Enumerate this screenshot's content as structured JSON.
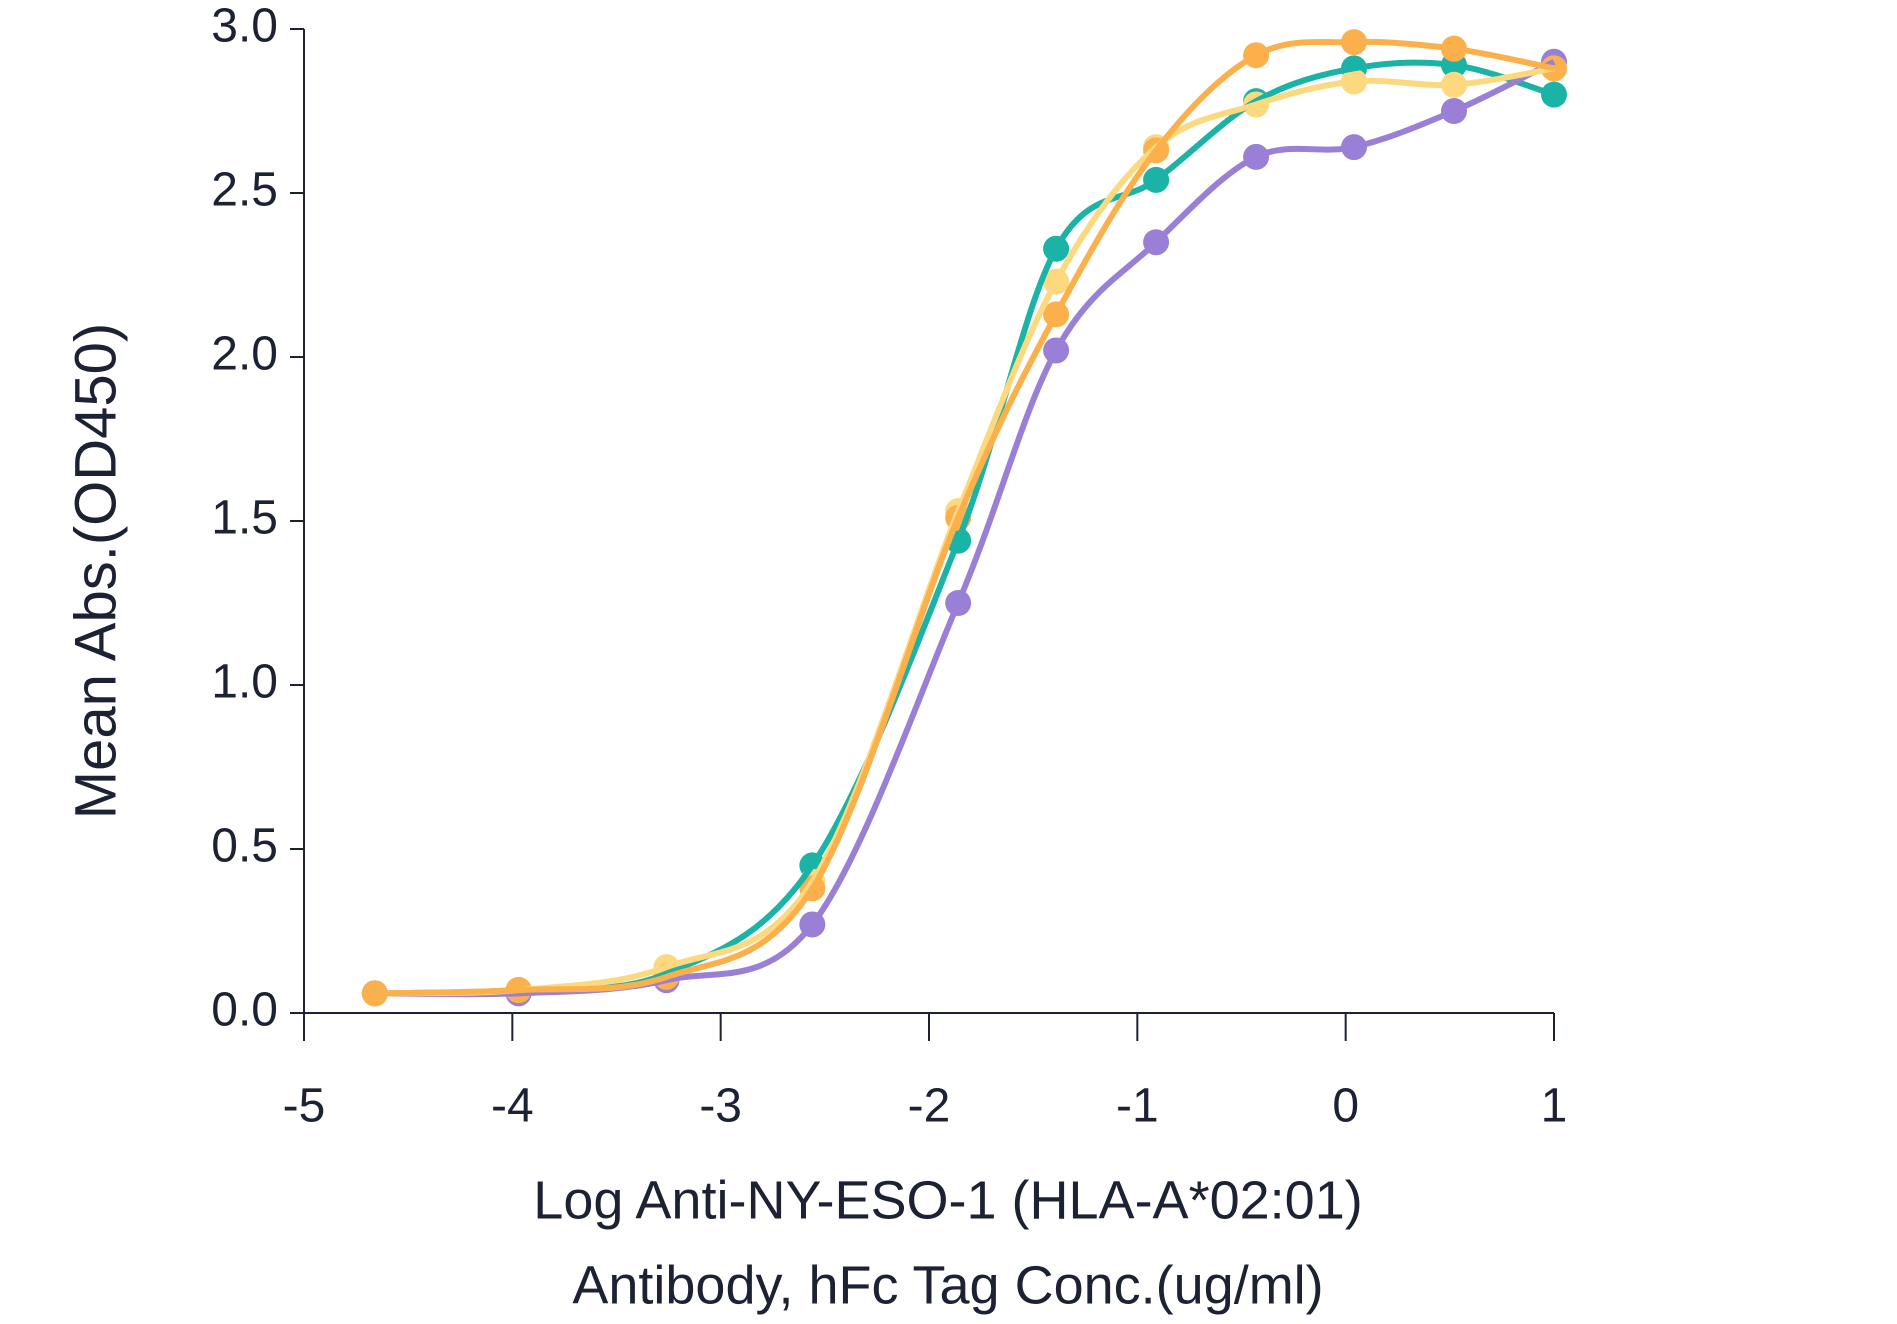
{
  "chart_data": {
    "type": "scatter",
    "ylabel": "Mean Abs.(OD450)",
    "xlabel": [
      "Log Anti-NY-ESO-1 (HLA-A*02:01)",
      "Antibody, hFc Tag Conc.(ug/ml)"
    ],
    "x": [
      -4.66,
      -3.97,
      -3.26,
      -2.56,
      -1.86,
      -1.39,
      -0.91,
      -0.43,
      0.04,
      0.52,
      1.0
    ],
    "series": [
      {
        "color": "#1ab3a6",
        "values": [
          0.06,
          0.07,
          0.12,
          0.45,
          1.44,
          2.33,
          2.54,
          2.78,
          2.88,
          2.89,
          2.8
        ]
      },
      {
        "color": "#9a7fd6",
        "values": [
          0.06,
          0.06,
          0.1,
          0.27,
          1.25,
          2.02,
          2.35,
          2.61,
          2.64,
          2.75,
          2.9
        ]
      },
      {
        "color": "#fcd97f",
        "values": [
          0.06,
          0.07,
          0.14,
          0.4,
          1.53,
          2.23,
          2.64,
          2.77,
          2.84,
          2.83,
          2.88
        ]
      },
      {
        "color": "#fbb04c",
        "values": [
          0.06,
          0.07,
          0.11,
          0.38,
          1.51,
          2.13,
          2.63,
          2.92,
          2.96,
          2.94,
          2.88
        ]
      }
    ],
    "xlim": [
      -5,
      1
    ],
    "xticks": [
      -5,
      -4,
      -3,
      -2,
      -1,
      0,
      1
    ],
    "ylim": [
      0,
      3
    ],
    "yticks": [
      {
        "value": 0,
        "label": "0.0"
      },
      0.5,
      {
        "value": 1,
        "label": "1.0"
      },
      1.5,
      {
        "value": 2,
        "label": "2.0"
      },
      2.5,
      {
        "value": 3,
        "label": "3.0"
      }
    ],
    "grid": false
  }
}
